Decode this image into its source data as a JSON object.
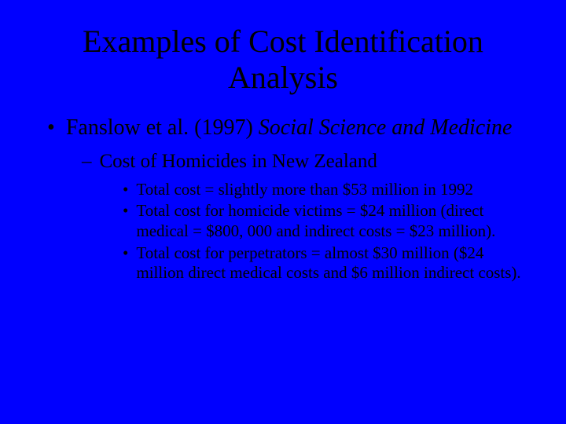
{
  "background_color": "#0000ff",
  "text_color": "#000000",
  "font_family": "Times New Roman",
  "title": "Examples of Cost Identification Analysis",
  "title_fontsize": 40,
  "level1_fontsize": 28,
  "level2_fontsize": 25,
  "level3_fontsize": 21,
  "bullets": {
    "level1": {
      "marker": "•",
      "text_plain": "Fanslow et al. (1997) ",
      "text_italic": "Social Science and Medicine"
    },
    "level2": {
      "marker": "–",
      "text": "Cost of Homicides in New Zealand"
    },
    "level3": [
      {
        "marker": "•",
        "text": "Total cost = slightly more than $53 million in 1992"
      },
      {
        "marker": "•",
        "text": "Total cost for homicide victims = $24 million (direct medical = $800, 000 and indirect costs = $23 million)."
      },
      {
        "marker": "•",
        "text": "Total cost for perpetrators = almost $30 million ($24 million direct medical costs and $6 million indirect costs)."
      }
    ]
  }
}
